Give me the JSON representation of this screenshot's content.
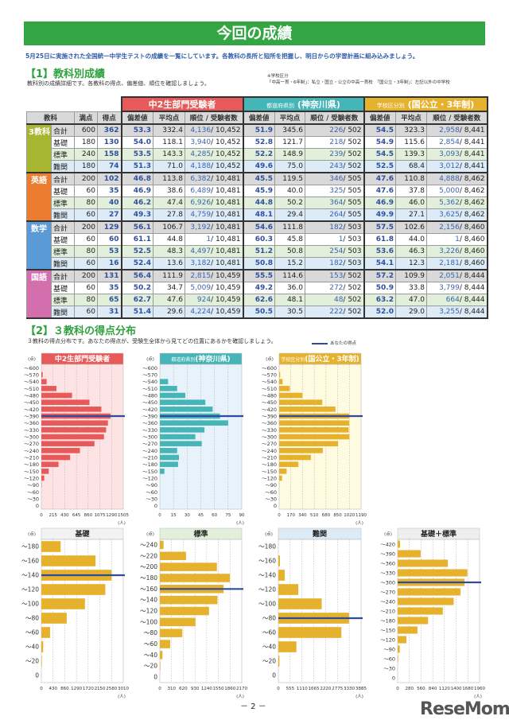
{
  "header": {
    "title": "今回の成績",
    "intro": "5月25日に実施された全国統一中学生テストの成績を一覧にしています。各教科の長所と短所を把握し、明日からの学習計画に組み込みましょう。"
  },
  "section1": {
    "heading": "【1】教科別成績",
    "subtitle": "教科別の成績詳細です。各教科の得点、偏差値、順位を確認しましょう。",
    "note_title": "※学校区分",
    "note_body": "「中高一貫・6年制」：私立・国立・公立の中高一貫校　「国公立・3年制」：左記以外の中学校"
  },
  "table": {
    "groups": [
      {
        "label": "中2生部門受験者",
        "small": "",
        "color": "#e85a5a"
      },
      {
        "label": "(神奈川県)",
        "small": "都道府県別",
        "color": "#45b5b8"
      },
      {
        "label": "(国公立・3年制)",
        "small": "学校区分別",
        "color": "#e6b22e"
      }
    ],
    "headers": [
      "教科",
      "満点",
      "得点",
      "偏差値",
      "平均点",
      "順位 / 受験者数",
      "偏差値",
      "平均点",
      "順位 / 受験者数",
      "偏差値",
      "平均点",
      "順位 / 受験者数"
    ],
    "subjects": [
      {
        "name": "3教科",
        "color": "#a8b530",
        "rows": [
          [
            "合計",
            600,
            362,
            "53.3",
            "332.4",
            "4,136",
            "/ 10,452",
            "51.9",
            "345.6",
            "226",
            "/ 502",
            "54.5",
            "323.3",
            "2,958",
            "/ 8,441"
          ],
          [
            "基礎",
            180,
            130,
            "54.0",
            "118.1",
            "3,940",
            "/ 10,452",
            "52.8",
            "121.7",
            "218",
            "/ 502",
            "54.9",
            "115.6",
            "2,854",
            "/ 8,441"
          ],
          [
            "標準",
            240,
            158,
            "53.5",
            "143.3",
            "4,285",
            "/ 10,452",
            "52.2",
            "148.9",
            "239",
            "/ 502",
            "54.5",
            "139.3",
            "3,093",
            "/ 8,441"
          ],
          [
            "難関",
            180,
            74,
            "51.3",
            "71.0",
            "4,188",
            "/ 10,452",
            "49.6",
            "75.0",
            "243",
            "/ 502",
            "52.5",
            "68.4",
            "3,012",
            "/ 8,441"
          ]
        ]
      },
      {
        "name": "英語",
        "color": "#ec7c30",
        "rows": [
          [
            "合計",
            200,
            102,
            "46.8",
            "113.8",
            "6,382",
            "/ 10,481",
            "45.5",
            "119.5",
            "346",
            "/ 505",
            "47.6",
            "110.8",
            "4,888",
            "/ 8,462"
          ],
          [
            "基礎",
            60,
            35,
            "46.9",
            "38.6",
            "6,489",
            "/ 10,481",
            "45.9",
            "40.0",
            "325",
            "/ 505",
            "47.6",
            "37.8",
            "5,000",
            "/ 8,462"
          ],
          [
            "標準",
            80,
            40,
            "46.2",
            "47.4",
            "6,926",
            "/ 10,481",
            "44.8",
            "50.2",
            "364",
            "/ 505",
            "46.9",
            "46.0",
            "5,362",
            "/ 8,462"
          ],
          [
            "難関",
            60,
            27,
            "49.3",
            "27.8",
            "4,759",
            "/ 10,481",
            "48.1",
            "29.4",
            "264",
            "/ 505",
            "49.9",
            "27.1",
            "3,625",
            "/ 8,462"
          ]
        ]
      },
      {
        "name": "数学",
        "color": "#5b9bd5",
        "rows": [
          [
            "合計",
            200,
            129,
            "56.1",
            "106.7",
            "3,192",
            "/ 10,481",
            "54.6",
            "111.8",
            "182",
            "/ 503",
            "57.5",
            "102.6",
            "2,156",
            "/ 8,460"
          ],
          [
            "基礎",
            60,
            60,
            "61.1",
            "44.8",
            "1",
            "/ 10,481",
            "60.3",
            "45.8",
            "1",
            "/ 503",
            "61.8",
            "44.0",
            "1",
            "/ 8,460"
          ],
          [
            "標準",
            80,
            53,
            "52.5",
            "48.3",
            "4,497",
            "/ 10,481",
            "51.2",
            "50.8",
            "254",
            "/ 503",
            "53.6",
            "46.3",
            "3,226",
            "/ 8,460"
          ],
          [
            "難関",
            60,
            16,
            "52.4",
            "13.6",
            "3,182",
            "/ 10,481",
            "50.8",
            "15.2",
            "182",
            "/ 503",
            "54.1",
            "12.3",
            "2,181",
            "/ 8,460"
          ]
        ]
      },
      {
        "name": "国語",
        "color": "#d46fae",
        "rows": [
          [
            "合計",
            200,
            131,
            "56.4",
            "111.9",
            "2,815",
            "/ 10,459",
            "55.5",
            "114.6",
            "153",
            "/ 502",
            "57.2",
            "109.9",
            "2,051",
            "/ 8,444"
          ],
          [
            "基礎",
            60,
            35,
            "50.2",
            "34.7",
            "5,009",
            "/ 10,459",
            "49.2",
            "36.0",
            "272",
            "/ 502",
            "50.9",
            "33.8",
            "3,799",
            "/ 8,444"
          ],
          [
            "標準",
            80,
            65,
            "62.7",
            "47.6",
            "924",
            "/ 10,459",
            "62.6",
            "48.1",
            "48",
            "/ 502",
            "63.2",
            "47.0",
            "664",
            "/ 8,444"
          ],
          [
            "難関",
            60,
            31,
            "51.4",
            "29.6",
            "4,224",
            "/ 10,459",
            "50.5",
            "30.5",
            "222",
            "/ 502",
            "52.0",
            "29.0",
            "3,255",
            "/ 8,444"
          ]
        ]
      }
    ]
  },
  "section2": {
    "heading": "【2】３教科の得点分布",
    "subtitle": "３教科の得点分布です。あなたの得点が、受験生全体から見てどの位置にあるかを確認しましょう。",
    "legend": "あなたの得点",
    "your_score_color": "#2f4b9a"
  },
  "chart_data": [
    {
      "type": "bar",
      "orientation": "horizontal",
      "title_small": "",
      "title": "中2生部門受験者",
      "y_unit": "(点)",
      "x_unit": "(人)",
      "bar_color": "#e85a5a",
      "background": "#fde3e3",
      "title_bg": "#e85a5a",
      "title_color": "#ffffff",
      "categories": [
        "～600",
        "～570",
        "～540",
        "～510",
        "～480",
        "～450",
        "～420",
        "～390",
        "～360",
        "～330",
        "～300",
        "～270",
        "～240",
        "～210",
        "～180",
        "～150",
        "～120",
        "～90",
        "～60",
        "～30",
        "0"
      ],
      "values": [
        0,
        25,
        97,
        277,
        563,
        884,
        1102,
        1272,
        1223,
        1190,
        1150,
        976,
        709,
        529,
        316,
        136,
        53,
        5,
        0,
        0,
        0
      ],
      "xlim": [
        0,
        1505
      ],
      "ticks": [
        0,
        215,
        430,
        645,
        860,
        1075,
        1290,
        1505
      ],
      "your_score": "～390",
      "grid": true
    },
    {
      "type": "bar",
      "orientation": "horizontal",
      "title_small": "都道府県別",
      "title": "(神奈川県)",
      "y_unit": "(点)",
      "x_unit": "(人)",
      "bar_color": "#45b5b8",
      "background": "#e8f2fa",
      "title_bg": "#45b5b8",
      "title_color": "#ffffff",
      "categories": [
        "～600",
        "～570",
        "～540",
        "～510",
        "～480",
        "～450",
        "～420",
        "～390",
        "～360",
        "～330",
        "～300",
        "～270",
        "～240",
        "～210",
        "～180",
        "～150",
        "～120",
        "～90",
        "～60",
        "～30",
        "0"
      ],
      "values": [
        0,
        0,
        9,
        19,
        28,
        50,
        58,
        66,
        75,
        49,
        39,
        46,
        19,
        21,
        20,
        5,
        0,
        0,
        0,
        0,
        0
      ],
      "xlim": [
        0,
        90
      ],
      "ticks": [
        0,
        15,
        30,
        45,
        60,
        75,
        90
      ],
      "your_score": "～390",
      "grid": true
    },
    {
      "type": "bar",
      "orientation": "horizontal",
      "title_small": "学校区分別",
      "title": "(国公立・3年制)",
      "y_unit": "(点)",
      "x_unit": "(人)",
      "bar_color": "#e6b22e",
      "background": "#fffbe0",
      "title_bg": "#e6b22e",
      "title_color": "#ffffff",
      "categories": [
        "～600",
        "～570",
        "～540",
        "～510",
        "～480",
        "～450",
        "～420",
        "～390",
        "～360",
        "～330",
        "～300",
        "～270",
        "～240",
        "～210",
        "～180",
        "～150",
        "～120",
        "～90",
        "～60",
        "～30",
        "0"
      ],
      "values": [
        0,
        15,
        50,
        154,
        338,
        626,
        818,
        1018,
        1018,
        1010,
        1021,
        856,
        634,
        461,
        280,
        108,
        42,
        4,
        0,
        0,
        0
      ],
      "xlim": [
        0,
        1190
      ],
      "ticks": [
        0,
        170,
        340,
        510,
        680,
        850,
        1020,
        1190
      ],
      "your_score": "～390",
      "grid": true
    },
    {
      "type": "bar",
      "orientation": "horizontal",
      "title_small": "",
      "title": "基礎",
      "y_unit": "(点)",
      "x_unit": "(人)",
      "bar_color": "#e6b22e",
      "background": "#ffffff",
      "title_bg": "#f2f2f2",
      "title_color": "#222222",
      "categories": [
        "～180",
        "～160",
        "～140",
        "～120",
        "～100",
        "～80",
        "～60",
        "～40",
        "～20",
        "0"
      ],
      "values": [
        709,
        1990,
        2583,
        2350,
        1602,
        932,
        320,
        68,
        19,
        0
      ],
      "xlim": [
        0,
        3010
      ],
      "ticks": [
        0,
        430,
        860,
        1290,
        1720,
        2150,
        2580,
        3010
      ],
      "your_score": "～140",
      "grid": true
    },
    {
      "type": "bar",
      "orientation": "horizontal",
      "title_small": "",
      "title": "標準",
      "y_unit": "(点)",
      "x_unit": "(人)",
      "bar_color": "#e6b22e",
      "background": "#ffffff",
      "title_bg": "#e2efda",
      "title_color": "#222222",
      "categories": [
        "～240",
        "～220",
        "～200",
        "～180",
        "～160",
        "～140",
        "～120",
        "～100",
        "～80",
        "～60",
        "～40",
        "～20",
        "0"
      ],
      "values": [
        98,
        693,
        1512,
        1855,
        1687,
        1526,
        1302,
        945,
        595,
        273,
        70,
        14,
        0
      ],
      "xlim": [
        0,
        2170
      ],
      "ticks": [
        0,
        310,
        620,
        930,
        1240,
        1550,
        1860,
        2170
      ],
      "your_score": "～160",
      "grid": true
    },
    {
      "type": "bar",
      "orientation": "horizontal",
      "title_small": "",
      "title": "難関",
      "y_unit": "(点)",
      "x_unit": "(人)",
      "bar_color": "#e6b22e",
      "background": "#ffffff",
      "title_bg": "#ddebf7",
      "title_color": "#222222",
      "categories": [
        "～180",
        "～160",
        "～140",
        "～120",
        "～100",
        "～80",
        "～60",
        "～40",
        "～20",
        "0"
      ],
      "values": [
        0,
        75,
        300,
        937,
        2036,
        3322,
        2960,
        849,
        50,
        0
      ],
      "xlim": [
        0,
        3885
      ],
      "ticks": [
        0,
        555,
        1110,
        1665,
        2220,
        2775,
        3330,
        3885
      ],
      "your_score": "～80",
      "grid": true
    },
    {
      "type": "bar",
      "orientation": "horizontal",
      "title_small": "",
      "title": "基礎＋標準",
      "y_unit": "(点)",
      "x_unit": "(人)",
      "bar_color": "#e6b22e",
      "background": "#ffffff",
      "title_bg": "#eeeeee",
      "title_color": "#222222",
      "categories": [
        "～420",
        "～390",
        "～360",
        "～330",
        "～300",
        "～270",
        "～240",
        "～210",
        "～180",
        "～150",
        "～120",
        "～90",
        "～60",
        "～30",
        "0"
      ],
      "values": [
        57,
        550,
        1201,
        1669,
        1600,
        1504,
        1340,
        1081,
        727,
        474,
        209,
        51,
        13,
        0,
        0
      ],
      "xlim": [
        0,
        1960
      ],
      "ticks": [
        0,
        280,
        560,
        840,
        1120,
        1400,
        1680,
        1960
      ],
      "your_score": "～300",
      "grid": true
    }
  ],
  "footer": {
    "page_number": "－ 2 －",
    "logo": "ReseMom"
  }
}
